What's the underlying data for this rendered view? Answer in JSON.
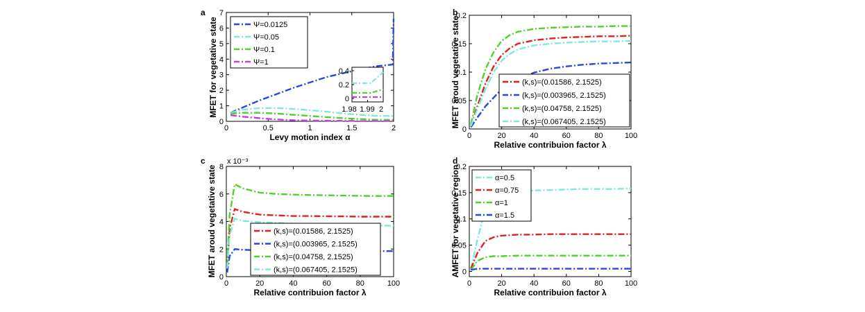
{
  "chart_data": [
    {
      "type": "line",
      "panel_label": "a",
      "xlabel": "Levy motion index α",
      "ylabel": "MFET  for vegetative state",
      "xlim": [
        0,
        2
      ],
      "ylim": [
        0,
        7
      ],
      "xticks": [
        0,
        0.5,
        1,
        1.5,
        2
      ],
      "xtick_labels": [
        "0",
        "0.5",
        "1",
        "1.5",
        "2"
      ],
      "yticks": [
        0,
        1,
        2,
        3,
        4,
        5,
        6,
        7
      ],
      "ytick_labels": [
        "0",
        "1",
        "2",
        "3",
        "4",
        "5",
        "6",
        "7"
      ],
      "legend_position": "top-left",
      "series": [
        {
          "name": "Ψ=0.0125",
          "color": "#2747e0",
          "x": [
            0.05,
            0.2,
            0.4,
            0.6,
            0.8,
            1.0,
            1.2,
            1.4,
            1.6,
            1.8,
            1.99,
            2.0
          ],
          "y": [
            0.55,
            0.9,
            1.35,
            1.75,
            2.15,
            2.5,
            2.85,
            3.1,
            3.35,
            3.55,
            3.65,
            6.6
          ]
        },
        {
          "name": "Ψ=0.05",
          "color": "#7ee8dc",
          "x": [
            0.05,
            0.2,
            0.4,
            0.6,
            0.8,
            1.0,
            1.2,
            1.4,
            1.6,
            1.8,
            2.0
          ],
          "y": [
            0.55,
            0.75,
            0.85,
            0.85,
            0.8,
            0.72,
            0.62,
            0.5,
            0.42,
            0.35,
            0.35
          ]
        },
        {
          "name": "Ψ=0.1",
          "color": "#4fd12c",
          "x": [
            0.05,
            0.2,
            0.4,
            0.6,
            0.8,
            1.0,
            1.2,
            1.4,
            1.6,
            1.8,
            2.0
          ],
          "y": [
            0.5,
            0.55,
            0.55,
            0.5,
            0.42,
            0.35,
            0.27,
            0.2,
            0.15,
            0.1,
            0.1
          ]
        },
        {
          "name": "Ψ=1",
          "color": "#c23fd8",
          "x": [
            0.05,
            0.2,
            0.4,
            0.6,
            0.8,
            1.0,
            1.2,
            1.4,
            1.6,
            1.8,
            2.0
          ],
          "y": [
            0.4,
            0.3,
            0.2,
            0.12,
            0.07,
            0.05,
            0.04,
            0.03,
            0.02,
            0.02,
            0.02
          ]
        }
      ],
      "inset": {
        "xlim": [
          1.98,
          2.0
        ],
        "ylim": [
          -0.05,
          0.45
        ],
        "xticks": [
          1.98,
          1.99,
          2
        ],
        "xtick_labels": [
          "1.98",
          "1.99",
          "2"
        ],
        "yticks": [
          0,
          0.2,
          0.4
        ],
        "ytick_labels": [
          "0",
          "0.2",
          "0.4"
        ],
        "series": [
          {
            "color": "#7ee8dc",
            "x": [
              1.98,
              1.992,
              2.0
            ],
            "y": [
              0.22,
              0.22,
              0.38
            ]
          },
          {
            "color": "#4fd12c",
            "x": [
              1.98,
              1.992,
              2.0
            ],
            "y": [
              0.08,
              0.08,
              0.13
            ]
          },
          {
            "color": "#c23fd8",
            "x": [
              1.98,
              1.992,
              2.0
            ],
            "y": [
              0.02,
              0.02,
              0.02
            ]
          }
        ]
      }
    },
    {
      "type": "line",
      "panel_label": "b",
      "xlabel": "Relative contribuion factor λ",
      "ylabel": "MFET aroud vegetative state",
      "xlim": [
        0,
        100
      ],
      "ylim": [
        0,
        0.2
      ],
      "xticks": [
        0,
        20,
        40,
        60,
        80,
        100
      ],
      "xtick_labels": [
        "0",
        "20",
        "40",
        "60",
        "80",
        "100"
      ],
      "yticks": [
        0,
        0.05,
        0.1,
        0.15,
        0.2
      ],
      "ytick_labels": [
        "0",
        "0.05",
        "0.1",
        "0.15",
        "0.2"
      ],
      "legend_position": "bottom-right",
      "series": [
        {
          "name": "(k,s)=(0.01586, 2.1525)",
          "color": "#e02020",
          "x": [
            1,
            5,
            10,
            15,
            20,
            25,
            30,
            40,
            50,
            60,
            70,
            80,
            90,
            100
          ],
          "y": [
            0.005,
            0.04,
            0.08,
            0.11,
            0.13,
            0.142,
            0.15,
            0.156,
            0.159,
            0.161,
            0.162,
            0.163,
            0.163,
            0.164
          ]
        },
        {
          "name": "(k,s)=(0.003965, 2.1525)",
          "color": "#2747e0",
          "x": [
            1,
            5,
            10,
            15,
            20,
            25,
            30,
            40,
            50,
            60,
            70,
            80,
            90,
            100
          ],
          "y": [
            0.003,
            0.02,
            0.04,
            0.055,
            0.07,
            0.08,
            0.088,
            0.099,
            0.106,
            0.11,
            0.113,
            0.115,
            0.116,
            0.117
          ]
        },
        {
          "name": "(k,s)=(0.04758, 2.1525)",
          "color": "#4fd12c",
          "x": [
            1,
            5,
            10,
            15,
            20,
            25,
            30,
            40,
            50,
            60,
            70,
            80,
            90,
            100
          ],
          "y": [
            0.008,
            0.06,
            0.105,
            0.135,
            0.155,
            0.165,
            0.171,
            0.176,
            0.178,
            0.179,
            0.18,
            0.18,
            0.181,
            0.181
          ]
        },
        {
          "name": "(k,s)=(0.067405, 2.1525)",
          "color": "#7ee8dc",
          "x": [
            1,
            5,
            10,
            15,
            20,
            25,
            30,
            40,
            50,
            60,
            70,
            80,
            90,
            100
          ],
          "y": [
            0.005,
            0.035,
            0.07,
            0.1,
            0.12,
            0.132,
            0.14,
            0.147,
            0.15,
            0.152,
            0.153,
            0.154,
            0.154,
            0.155
          ]
        }
      ]
    },
    {
      "type": "line",
      "panel_label": "c",
      "xlabel": "Relative contribuion factor λ",
      "ylabel": "MFET aroud vegetative state",
      "scale_label": "x 10⁻³",
      "xlim": [
        0,
        100
      ],
      "ylim": [
        0,
        8
      ],
      "xticks": [
        0,
        20,
        40,
        60,
        80,
        100
      ],
      "xtick_labels": [
        "0",
        "20",
        "40",
        "60",
        "80",
        "100"
      ],
      "yticks": [
        0,
        2,
        4,
        6,
        8
      ],
      "ytick_labels": [
        "0",
        "2",
        "4",
        "6",
        "8"
      ],
      "legend_position": "bottom-right",
      "series": [
        {
          "name": "(k,s)=(0.01586, 2.1525)",
          "color": "#e02020",
          "x": [
            0.5,
            2,
            5,
            10,
            20,
            30,
            40,
            50,
            60,
            70,
            80,
            90,
            100
          ],
          "y": [
            0.5,
            3.5,
            4.9,
            4.7,
            4.5,
            4.45,
            4.4,
            4.4,
            4.38,
            4.37,
            4.35,
            4.35,
            4.35
          ]
        },
        {
          "name": "(k,s)=(0.003965, 2.1525)",
          "color": "#2747e0",
          "x": [
            0.5,
            2,
            5,
            10,
            20,
            30,
            40,
            50,
            60,
            70,
            80,
            90,
            100
          ],
          "y": [
            0.3,
            1.5,
            2.0,
            1.95,
            1.9,
            1.88,
            1.87,
            1.86,
            1.86,
            1.85,
            1.85,
            1.85,
            1.85
          ]
        },
        {
          "name": "(k,s)=(0.04758, 2.1525)",
          "color": "#4fd12c",
          "x": [
            0.5,
            2,
            5,
            10,
            20,
            30,
            40,
            50,
            60,
            70,
            80,
            90,
            100
          ],
          "y": [
            0.8,
            4.5,
            6.7,
            6.4,
            6.1,
            6.0,
            5.95,
            5.92,
            5.9,
            5.88,
            5.86,
            5.85,
            5.85
          ]
        },
        {
          "name": "(k,s)=(0.067405, 2.1525)",
          "color": "#7ee8dc",
          "x": [
            0.5,
            2,
            5,
            10,
            20,
            30,
            40,
            50,
            60,
            70,
            80,
            90,
            100
          ],
          "y": [
            0.6,
            3.0,
            4.2,
            4.05,
            3.95,
            3.9,
            3.85,
            3.82,
            3.8,
            3.78,
            3.75,
            3.72,
            3.7
          ]
        }
      ]
    },
    {
      "type": "line",
      "panel_label": "d",
      "xlabel": "Relative contribuion factor λ",
      "ylabel": "AMFET for vegetative region",
      "xlim": [
        0,
        100
      ],
      "ylim": [
        -0.01,
        0.2
      ],
      "xticks": [
        0,
        20,
        40,
        60,
        80,
        100
      ],
      "xtick_labels": [
        "0",
        "20",
        "40",
        "60",
        "80",
        "100"
      ],
      "yticks": [
        0,
        0.05,
        0.1,
        0.15,
        0.2
      ],
      "ytick_labels": [
        "0",
        "0.05",
        "0.1",
        "0.15",
        "0.2"
      ],
      "legend_position": "top-left",
      "series": [
        {
          "name": "α=0.5",
          "color": "#7ee8dc",
          "x": [
            1,
            5,
            10,
            15,
            20,
            30,
            40,
            50,
            60,
            70,
            80,
            90,
            100
          ],
          "y": [
            0.005,
            0.06,
            0.12,
            0.14,
            0.148,
            0.152,
            0.154,
            0.155,
            0.156,
            0.157,
            0.157,
            0.157,
            0.158
          ]
        },
        {
          "name": "α=0.75",
          "color": "#e02020",
          "x": [
            1,
            5,
            10,
            15,
            20,
            30,
            40,
            50,
            60,
            70,
            80,
            90,
            100
          ],
          "y": [
            0.005,
            0.035,
            0.058,
            0.065,
            0.068,
            0.07,
            0.07,
            0.071,
            0.071,
            0.071,
            0.071,
            0.071,
            0.071
          ]
        },
        {
          "name": "α=1",
          "color": "#4fd12c",
          "x": [
            1,
            5,
            10,
            15,
            20,
            30,
            40,
            50,
            60,
            70,
            80,
            90,
            100
          ],
          "y": [
            0.003,
            0.02,
            0.027,
            0.029,
            0.029,
            0.03,
            0.03,
            0.03,
            0.03,
            0.03,
            0.03,
            0.03,
            0.03
          ]
        },
        {
          "name": "α=1.5",
          "color": "#2747e0",
          "x": [
            1,
            5,
            10,
            20,
            40,
            60,
            80,
            100
          ],
          "y": [
            0.003,
            0.005,
            0.005,
            0.005,
            0.005,
            0.005,
            0.005,
            0.005
          ]
        }
      ]
    }
  ]
}
